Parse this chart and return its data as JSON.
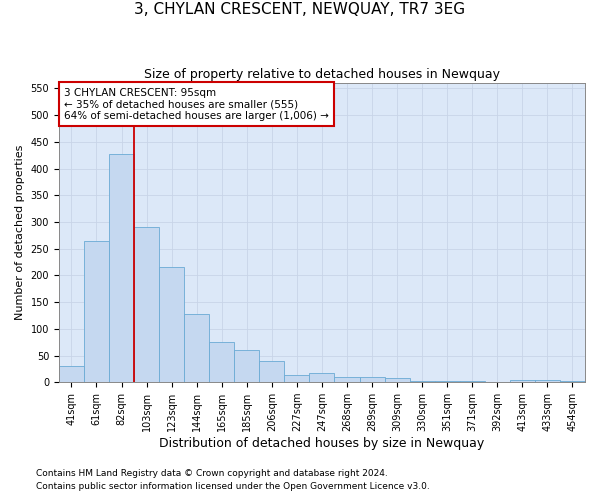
{
  "title": "3, CHYLAN CRESCENT, NEWQUAY, TR7 3EG",
  "subtitle": "Size of property relative to detached houses in Newquay",
  "xlabel": "Distribution of detached houses by size in Newquay",
  "ylabel": "Number of detached properties",
  "footer_line1": "Contains HM Land Registry data © Crown copyright and database right 2024.",
  "footer_line2": "Contains public sector information licensed under the Open Government Licence v3.0.",
  "bar_labels": [
    "41sqm",
    "61sqm",
    "82sqm",
    "103sqm",
    "123sqm",
    "144sqm",
    "165sqm",
    "185sqm",
    "206sqm",
    "227sqm",
    "247sqm",
    "268sqm",
    "289sqm",
    "309sqm",
    "330sqm",
    "351sqm",
    "371sqm",
    "392sqm",
    "413sqm",
    "433sqm",
    "454sqm"
  ],
  "bar_values": [
    30,
    265,
    428,
    290,
    215,
    128,
    76,
    60,
    40,
    13,
    17,
    9,
    10,
    8,
    3,
    3,
    3,
    1,
    5,
    4,
    2
  ],
  "bar_color": "#c5d8f0",
  "bar_edgecolor": "#6aaad4",
  "vline_color": "#cc0000",
  "vline_x": 3.0,
  "annotation_title": "3 CHYLAN CRESCENT: 95sqm",
  "annotation_line1": "← 35% of detached houses are smaller (555)",
  "annotation_line2": "64% of semi-detached houses are larger (1,006) →",
  "annotation_box_facecolor": "#ffffff",
  "annotation_box_edgecolor": "#cc0000",
  "ylim": [
    0,
    560
  ],
  "yticks": [
    0,
    50,
    100,
    150,
    200,
    250,
    300,
    350,
    400,
    450,
    500,
    550
  ],
  "grid_color": "#c8d4e8",
  "bg_color": "#dce8f8",
  "fig_facecolor": "#ffffff",
  "title_fontsize": 11,
  "subtitle_fontsize": 9,
  "xlabel_fontsize": 9,
  "ylabel_fontsize": 8,
  "tick_fontsize": 7,
  "annot_fontsize": 7.5,
  "footer_fontsize": 6.5
}
